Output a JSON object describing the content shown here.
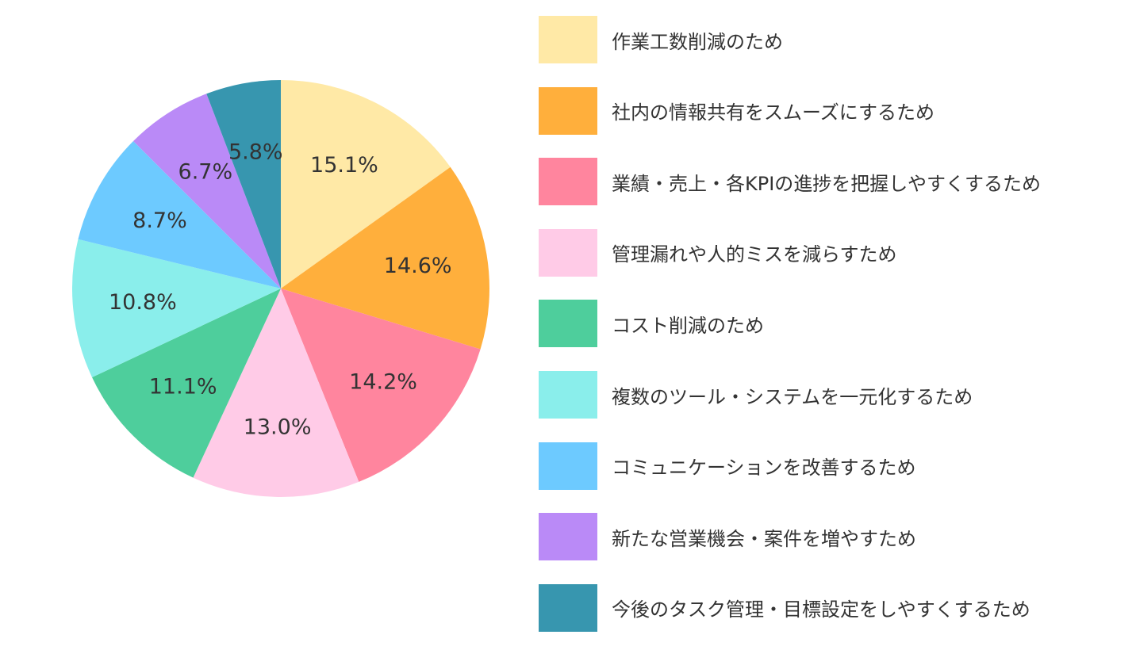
{
  "chart_data": {
    "type": "pie",
    "title": "",
    "slices": [
      {
        "label": "作業工数削減のため",
        "value": 15.1,
        "display": "15.1%",
        "color": "#FFE9A6"
      },
      {
        "label": "社内の情報共有をスムーズにするため",
        "value": 14.6,
        "display": "14.6%",
        "color": "#FFAF3C"
      },
      {
        "label": "業績・売上・各KPIの進捗を把握しやすくするため",
        "value": 14.2,
        "display": "14.2%",
        "color": "#FF859E"
      },
      {
        "label": "管理漏れや人的ミスを減らすため",
        "value": 13.0,
        "display": "13.0%",
        "color": "#FFCBE7"
      },
      {
        "label": "コスト削減のため",
        "value": 11.1,
        "display": "11.1%",
        "color": "#4ECE9C"
      },
      {
        "label": "複数のツール・システムを一元化するため",
        "value": 10.8,
        "display": "10.8%",
        "color": "#8AEEEB"
      },
      {
        "label": "コミュニケーションを改善するため",
        "value": 8.7,
        "display": "8.7%",
        "color": "#6DCAFF"
      },
      {
        "label": "新たな営業機会・案件を増やすため",
        "value": 6.7,
        "display": "6.7%",
        "color": "#BA8AF7"
      },
      {
        "label": "今後のタスク管理・目標設定をしやすくするため",
        "value": 5.8,
        "display": "5.8%",
        "color": "#3796AF"
      }
    ],
    "start_angle": "12 o'clock",
    "direction": "clockwise",
    "legend_position": "right"
  }
}
